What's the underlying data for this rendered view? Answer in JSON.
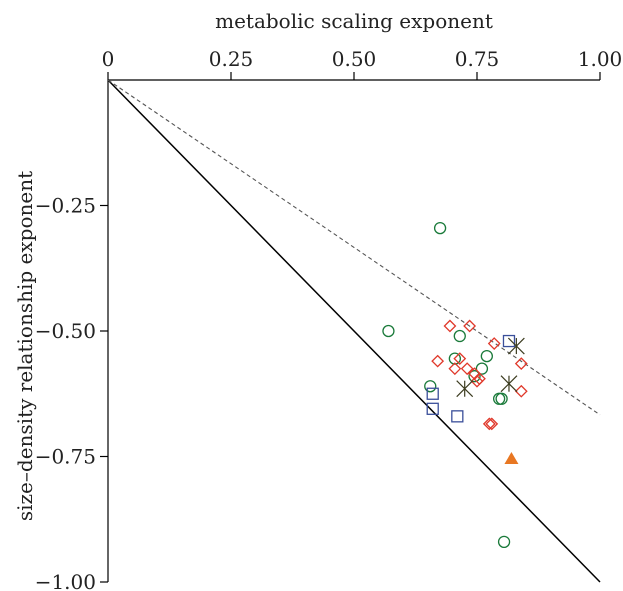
{
  "chart_data": {
    "type": "scatter",
    "xlabel": "metabolic scaling exponent",
    "ylabel": "size–density relationship exponent",
    "xlim": [
      0,
      1
    ],
    "ylim": [
      -1,
      0
    ],
    "x_axis_position": "top",
    "x_ticks": [
      {
        "value": 0,
        "label": "0"
      },
      {
        "value": 0.25,
        "label": "0.25"
      },
      {
        "value": 0.5,
        "label": "0.50"
      },
      {
        "value": 0.75,
        "label": "0.75"
      },
      {
        "value": 1,
        "label": "1.00"
      }
    ],
    "y_ticks": [
      {
        "value": -0.25,
        "label": "−0.25"
      },
      {
        "value": -0.5,
        "label": "−0.50"
      },
      {
        "value": -0.75,
        "label": "−0.75"
      },
      {
        "value": -1,
        "label": "−1.00"
      }
    ],
    "lines": [
      {
        "style": "solid",
        "color": "#000000",
        "points": [
          [
            0,
            0
          ],
          [
            1,
            -1
          ]
        ]
      },
      {
        "style": "dashed",
        "color": "#555555",
        "points": [
          [
            0,
            0
          ],
          [
            1,
            -0.667
          ]
        ]
      }
    ],
    "series": [
      {
        "marker": "circle",
        "color": "#1a7a3a",
        "points": [
          [
            0.675,
            -0.295
          ],
          [
            0.57,
            -0.5
          ],
          [
            0.715,
            -0.51
          ],
          [
            0.705,
            -0.555
          ],
          [
            0.77,
            -0.55
          ],
          [
            0.76,
            -0.575
          ],
          [
            0.745,
            -0.59
          ],
          [
            0.655,
            -0.61
          ],
          [
            0.795,
            -0.635
          ],
          [
            0.8,
            -0.635
          ],
          [
            0.805,
            -0.92
          ]
        ]
      },
      {
        "marker": "diamond",
        "color": "#e0392b",
        "points": [
          [
            0.695,
            -0.49
          ],
          [
            0.735,
            -0.49
          ],
          [
            0.785,
            -0.525
          ],
          [
            0.84,
            -0.565
          ],
          [
            0.67,
            -0.56
          ],
          [
            0.715,
            -0.555
          ],
          [
            0.705,
            -0.575
          ],
          [
            0.73,
            -0.575
          ],
          [
            0.745,
            -0.585
          ],
          [
            0.755,
            -0.595
          ],
          [
            0.75,
            -0.6
          ],
          [
            0.84,
            -0.62
          ],
          [
            0.775,
            -0.685
          ],
          [
            0.78,
            -0.685
          ]
        ]
      },
      {
        "marker": "square",
        "color": "#3a4f9a",
        "points": [
          [
            0.815,
            -0.52
          ],
          [
            0.66,
            -0.625
          ],
          [
            0.66,
            -0.655
          ],
          [
            0.71,
            -0.67
          ]
        ]
      },
      {
        "marker": "star",
        "color": "#3b3b1f",
        "points": [
          [
            0.83,
            -0.53
          ],
          [
            0.815,
            -0.605
          ],
          [
            0.725,
            -0.615
          ]
        ]
      },
      {
        "marker": "triangle",
        "color": "#e87722",
        "points": [
          [
            0.82,
            -0.755
          ]
        ]
      }
    ]
  }
}
